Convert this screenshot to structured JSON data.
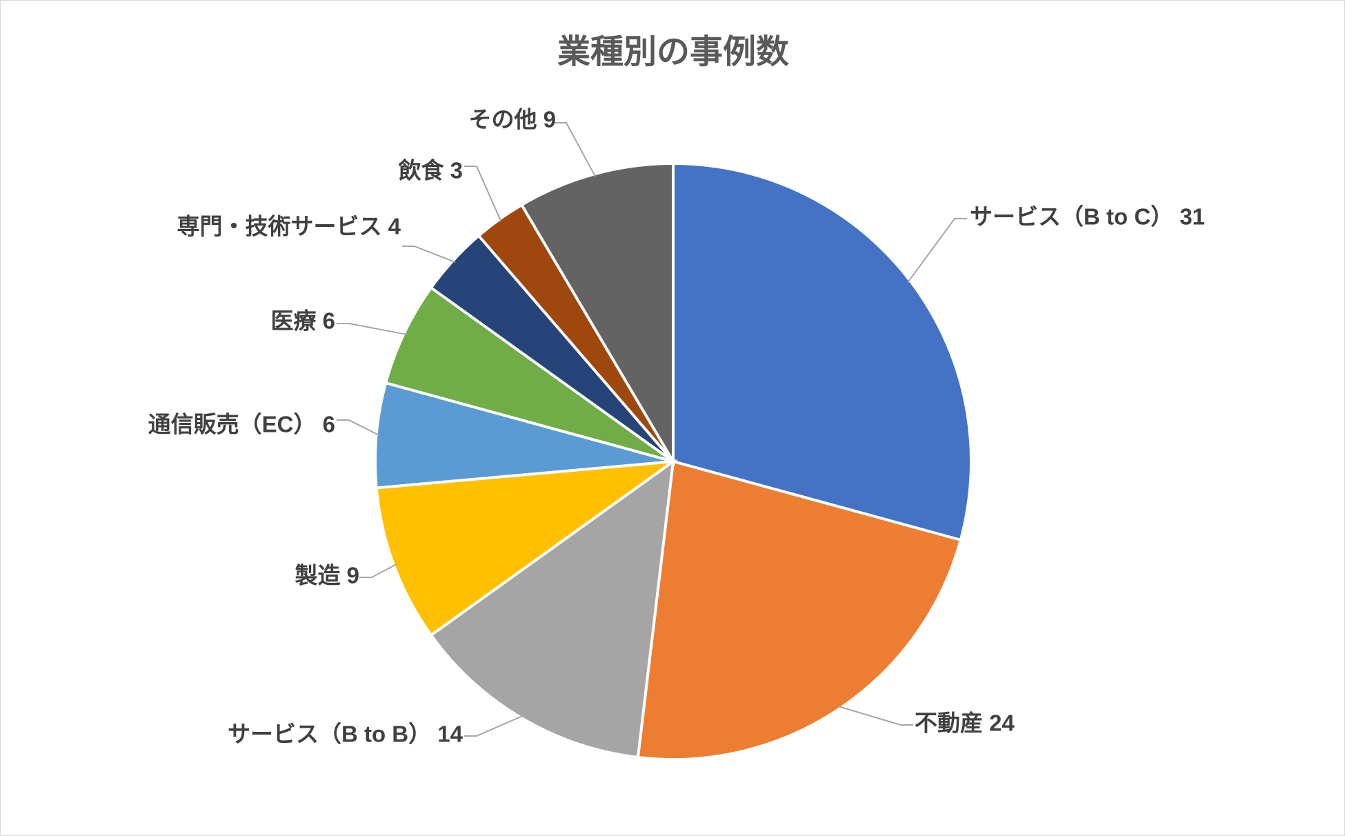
{
  "chart_data": {
    "type": "pie",
    "title": "業種別の事例数",
    "start_angle_deg": 0,
    "direction": "clockwise",
    "legend": "none",
    "slices": [
      {
        "label": "サービス（B to C）",
        "value": 31,
        "color": "#4472C4",
        "display": "サービス（B to C） 31"
      },
      {
        "label": "不動産",
        "value": 24,
        "color": "#ED7D31",
        "display": "不動産 24"
      },
      {
        "label": "サービス（B to B）",
        "value": 14,
        "color": "#A5A5A5",
        "display": "サービス（B to B） 14"
      },
      {
        "label": "製造",
        "value": 9,
        "color": "#FFC000",
        "display": "製造 9"
      },
      {
        "label": "通信販売（EC）",
        "value": 6,
        "color": "#5B9BD5",
        "display": "通信販売（EC） 6"
      },
      {
        "label": "医療",
        "value": 6,
        "color": "#70AD47",
        "display": "医療 6"
      },
      {
        "label": "専門・技術サービス",
        "value": 4,
        "color": "#264478",
        "display": "専門・技術サービス 4"
      },
      {
        "label": "飲食",
        "value": 3,
        "color": "#9E480E",
        "display": "飲食 3"
      },
      {
        "label": "その他",
        "value": 9,
        "color": "#636363",
        "display": "その他 9"
      }
    ]
  }
}
